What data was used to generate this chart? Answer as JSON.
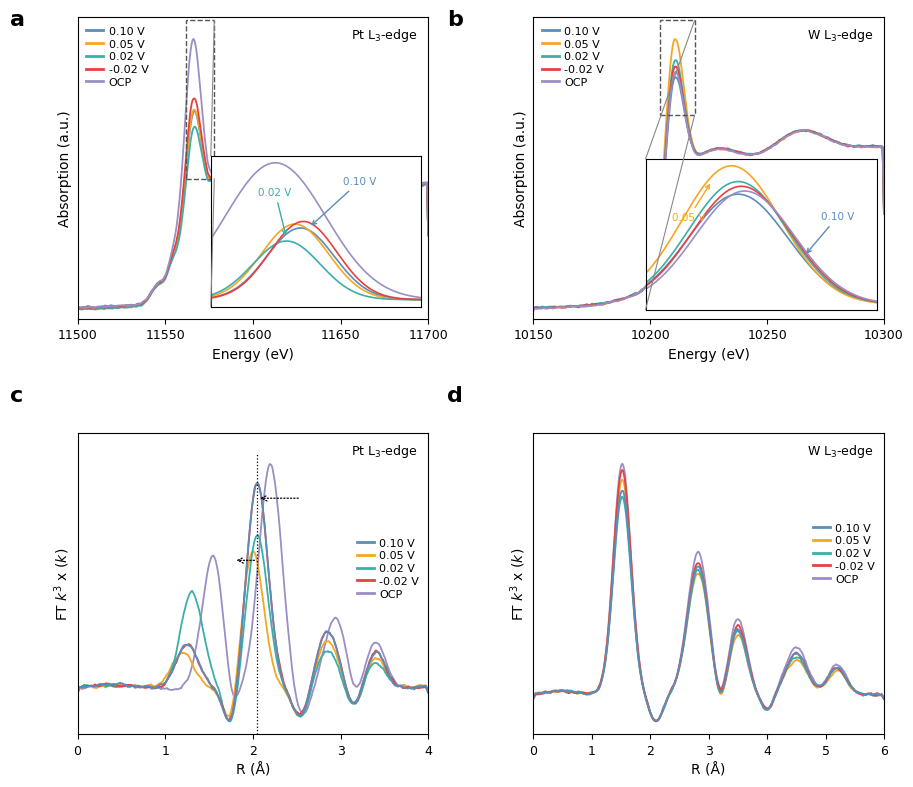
{
  "colors": {
    "blue": "#5B8DB8",
    "orange": "#F5A623",
    "teal": "#3AAFA9",
    "red": "#E84040",
    "purple": "#9B8EC4"
  },
  "legend_labels": [
    "0.10 V",
    "0.05 V",
    "0.02 V",
    "-0.02 V",
    "OCP"
  ],
  "panel_a": {
    "title": "Pt L$_3$-edge",
    "xlabel": "Energy (eV)",
    "ylabel": "Absorption (a.u.)",
    "xlim": [
      11500,
      11700
    ],
    "xticks": [
      11500,
      11550,
      11600,
      11650,
      11700
    ]
  },
  "panel_b": {
    "title": "W L$_3$-edge",
    "xlabel": "Energy (eV)",
    "ylabel": "Absorption (a.u.)",
    "xlim": [
      10150,
      10300
    ],
    "xticks": [
      10150,
      10200,
      10250,
      10300
    ]
  },
  "panel_c": {
    "title": "Pt L$_3$-edge",
    "xlabel": "R (Å)",
    "ylabel": "FT $k^3$ x ($k$)",
    "xlim": [
      0,
      4
    ],
    "xticks": [
      0,
      1,
      2,
      3,
      4
    ]
  },
  "panel_d": {
    "title": "W L$_3$-edge",
    "xlabel": "R (Å)",
    "ylabel": "FT $k^3$ x ($k$)",
    "xlim": [
      0,
      6
    ],
    "xticks": [
      0,
      1,
      2,
      3,
      4,
      5,
      6
    ]
  }
}
